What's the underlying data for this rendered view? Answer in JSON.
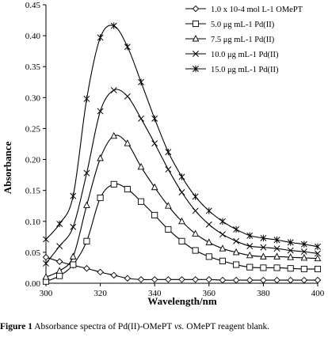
{
  "chart_data": {
    "type": "line",
    "title": "",
    "xlabel": "Wavelength/nm",
    "ylabel": "Absorbance",
    "xlim": [
      300,
      400
    ],
    "ylim": [
      0,
      0.45
    ],
    "xticks": [
      "300",
      "320",
      "340",
      "360",
      "380",
      "400"
    ],
    "yticks": [
      "0.00",
      "0.05",
      "0.10",
      "0.15",
      "0.20",
      "0.25",
      "0.30",
      "0.35",
      "0.40",
      "0.45"
    ],
    "grid": false,
    "legend_position": "top-right",
    "series": [
      {
        "name": "1.0 x 10-4 mol L-1 OMePT",
        "marker": "diamond",
        "x": [
          300,
          305,
          310,
          315,
          320,
          325,
          330,
          335,
          340,
          345,
          350,
          355,
          360,
          365,
          370,
          375,
          380,
          385,
          390,
          395,
          400
        ],
        "y": [
          0.042,
          0.035,
          0.029,
          0.024,
          0.018,
          0.013,
          0.008,
          0.006,
          0.006,
          0.006,
          0.006,
          0.006,
          0.006,
          0.005,
          0.005,
          0.005,
          0.005,
          0.005,
          0.005,
          0.005,
          0.005
        ]
      },
      {
        "name": "5.0 μg mL-1 Pd(II)",
        "marker": "square",
        "x": [
          300,
          305,
          310,
          315,
          320,
          325,
          330,
          335,
          340,
          345,
          350,
          355,
          360,
          365,
          370,
          375,
          380,
          385,
          390,
          395,
          400
        ],
        "y": [
          0.003,
          0.012,
          0.03,
          0.068,
          0.138,
          0.16,
          0.152,
          0.132,
          0.11,
          0.087,
          0.068,
          0.053,
          0.043,
          0.036,
          0.03,
          0.026,
          0.025,
          0.025,
          0.024,
          0.023,
          0.023
        ]
      },
      {
        "name": "7.5 μg mL-1 Pd(II)",
        "marker": "triangle",
        "x": [
          300,
          305,
          310,
          315,
          320,
          325,
          330,
          335,
          340,
          345,
          350,
          355,
          360,
          365,
          370,
          375,
          380,
          385,
          390,
          395,
          400
        ],
        "y": [
          0.01,
          0.02,
          0.043,
          0.126,
          0.202,
          0.238,
          0.226,
          0.188,
          0.155,
          0.125,
          0.1,
          0.08,
          0.066,
          0.056,
          0.05,
          0.045,
          0.043,
          0.043,
          0.042,
          0.041,
          0.04
        ]
      },
      {
        "name": "10.0 μg mL-1 Pd(II)",
        "marker": "x",
        "x": [
          300,
          305,
          310,
          315,
          320,
          325,
          330,
          335,
          340,
          345,
          350,
          355,
          360,
          365,
          370,
          375,
          380,
          385,
          390,
          395,
          400
        ],
        "y": [
          0.032,
          0.06,
          0.091,
          0.178,
          0.278,
          0.312,
          0.302,
          0.266,
          0.226,
          0.184,
          0.147,
          0.117,
          0.095,
          0.079,
          0.068,
          0.06,
          0.058,
          0.056,
          0.053,
          0.051,
          0.048
        ]
      },
      {
        "name": "15.0 μg mL-1 Pd(II)",
        "marker": "asterisk",
        "x": [
          300,
          305,
          310,
          315,
          320,
          325,
          330,
          335,
          340,
          345,
          350,
          355,
          360,
          365,
          370,
          375,
          380,
          385,
          390,
          395,
          400
        ],
        "y": [
          0.071,
          0.096,
          0.141,
          0.298,
          0.397,
          0.416,
          0.382,
          0.325,
          0.266,
          0.212,
          0.172,
          0.14,
          0.117,
          0.1,
          0.087,
          0.077,
          0.073,
          0.07,
          0.066,
          0.063,
          0.059
        ]
      }
    ]
  },
  "caption": {
    "label": "Figure 1",
    "text": " Absorbance spectra of Pd(II)-OMePT ",
    "italic": "vs.",
    "tail": " OMePT reagent blank."
  }
}
